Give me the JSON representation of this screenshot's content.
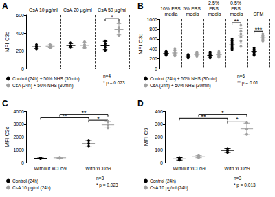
{
  "chart_data": [
    {
      "type": "scatter",
      "label": "A",
      "y_label": "MFI C3c",
      "categories": [
        "CsA 10 µg/ml",
        "CsA 20 µg/ml",
        "CsA 50 µg/ml"
      ],
      "ylim": [
        0,
        600
      ],
      "yticks": [
        0,
        200,
        400,
        600
      ],
      "grid": false,
      "line_style": "dashed",
      "series": [
        {
          "name": "Control (24h) + 50% NHS (30min)",
          "color": "#000000",
          "marker": "circle",
          "values": [
            [
              220,
              240,
              250,
              270
            ],
            [
              240,
              250,
              260,
              290
            ],
            [
              200,
              240,
              280,
              310
            ]
          ],
          "mean": [
            245,
            260,
            258
          ],
          "error": [
            20,
            22,
            48
          ]
        },
        {
          "name": "CsA (24h) + 50% NHS (30min)",
          "color": "#a0a0a0",
          "marker": "circle",
          "values": [
            [
              230,
              250,
              260,
              270
            ],
            [
              230,
              250,
              270,
              300
            ],
            [
              370,
              420,
              460,
              520
            ]
          ],
          "mean": [
            252,
            262,
            442
          ],
          "error": [
            17,
            30,
            63
          ]
        }
      ],
      "notes": [
        "n=4",
        "* p = 0.023"
      ],
      "annotations": [
        {
          "text": "*",
          "from": [
            "CsA 50 µg/ml",
            "Control (24h) + 50% NHS (30min)"
          ],
          "to": [
            "CsA 50 µg/ml",
            "CsA (24h) + 50% NHS (30min)"
          ],
          "y": 560
        }
      ]
    },
    {
      "type": "scatter",
      "label": "B",
      "y_label": "MFI C3c",
      "categories": [
        "10% FBS media",
        "5% FBS media",
        "2.5% FBS media",
        "0.5% FBS media",
        "SFM"
      ],
      "ylim": [
        0,
        1000
      ],
      "yticks": [
        0,
        200,
        400,
        600,
        800,
        1000
      ],
      "grid": false,
      "line_style": "dashed",
      "series": [
        {
          "name": "Control (24h) + 50% NHS (30min)",
          "color": "#000000",
          "marker": "circle",
          "values": [
            [
              270,
              290,
              300,
              320,
              330,
              350
            ],
            [
              220,
              240,
              250,
              260,
              270,
              290
            ],
            [
              220,
              240,
              260,
              280,
              290,
              330
            ],
            [
              380,
              420,
              460,
              500,
              540,
              600
            ],
            [
              270,
              300,
              330,
              350,
              380,
              420
            ]
          ],
          "mean": [
            310,
            255,
            270,
            483,
            342
          ],
          "error": [
            28,
            24,
            39,
            79,
            53
          ]
        },
        {
          "name": "CsA (24h) + 50% NHS (30min)",
          "color": "#a0a0a0",
          "marker": "circle",
          "values": [
            [
              260,
              280,
              300,
              320,
              360,
              400
            ],
            [
              250,
              270,
              280,
              300,
              310,
              330
            ],
            [
              230,
              250,
              270,
              290,
              310,
              350
            ],
            [
              450,
              560,
              640,
              700,
              760,
              880
            ],
            [
              560,
              580,
              600,
              640,
              660,
              700
            ]
          ],
          "mean": [
            320,
            290,
            283,
            665,
            623
          ],
          "error": [
            51,
            28,
            42,
            148,
            52
          ]
        }
      ],
      "notes": [
        "n=6",
        "** p = 0.01"
      ],
      "annotations": [
        {
          "text": "**",
          "from": [
            "0.5% FBS media",
            "Control (24h) + 50% NHS (30min)"
          ],
          "to": [
            "0.5% FBS media",
            "CsA (24h) + 50% NHS (30min)"
          ],
          "y": 930
        },
        {
          "text": "***",
          "from": [
            "SFM",
            "Control (24h) + 50% NHS (30min)"
          ],
          "to": [
            "SFM",
            "CsA (24h) + 50% NHS (30min)"
          ],
          "y": 760
        }
      ]
    },
    {
      "type": "scatter",
      "label": "C",
      "y_label": "MFI C3c",
      "categories": [
        "Without xCD59",
        "With xCD59"
      ],
      "ylim": [
        0,
        4000
      ],
      "yticks": [
        0,
        1000,
        2000,
        3000,
        4000
      ],
      "grid": false,
      "series": [
        {
          "name": "Control (24h)",
          "color": "#000000",
          "marker": "circle",
          "values": [
            [
              320,
              350,
              370
            ],
            [
              1300,
              1500,
              1700
            ]
          ],
          "mean": [
            347,
            1500
          ],
          "error": [
            25,
            200
          ]
        },
        {
          "name": "CsA 10 µg/ml (24h)",
          "color": "#a0a0a0",
          "marker": "circle",
          "values": [
            [
              350,
              380,
              420
            ],
            [
              2700,
              2950,
              3200
            ]
          ],
          "mean": [
            383,
            2950
          ],
          "error": [
            35,
            250
          ]
        }
      ],
      "notes": [
        "n=3",
        "* p = 0.023"
      ],
      "annotations": [
        {
          "text": "**",
          "from": [
            "Without xCD59",
            "CsA 10 µg/ml (24h)"
          ],
          "to": [
            "With xCD59",
            "CsA 10 µg/ml (24h)"
          ],
          "y": 3750
        },
        {
          "text": "**",
          "from": [
            "Without xCD59",
            "Control (24h)"
          ],
          "to": [
            "With xCD59",
            "Control (24h)"
          ],
          "y": 3500
        },
        {
          "text": "*",
          "from": [
            "With xCD59",
            "Control (24h)"
          ],
          "to": [
            "With xCD59",
            "CsA 10 µg/ml (24h)"
          ],
          "y": 3300
        }
      ]
    },
    {
      "type": "scatter",
      "label": "D",
      "y_label": "MFI C9",
      "categories": [
        "Without xCD59",
        "With xCD59"
      ],
      "ylim": [
        0,
        400
      ],
      "yticks": [
        0,
        100,
        200,
        300,
        400
      ],
      "grid": false,
      "series": [
        {
          "name": "Control (24h)",
          "color": "#000000",
          "marker": "circle",
          "values": [
            [
              20,
              30,
              40
            ],
            [
              80,
              95,
              110
            ]
          ],
          "mean": [
            30,
            95
          ],
          "error": [
            10,
            15
          ]
        },
        {
          "name": "CsA 10 µg/ml (24h)",
          "color": "#a0a0a0",
          "marker": "circle",
          "values": [
            [
              40,
              45,
              55
            ],
            [
              220,
              260,
              310
            ]
          ],
          "mean": [
            47,
            263
          ],
          "error": [
            8,
            45
          ]
        }
      ],
      "notes": [
        "n=3",
        "* p = 0.013"
      ],
      "annotations": [
        {
          "text": "*",
          "from": [
            "Without xCD59",
            "CsA 10 µg/ml (24h)"
          ],
          "to": [
            "With xCD59",
            "CsA 10 µg/ml (24h)"
          ],
          "y": 375
        },
        {
          "text": "**",
          "from": [
            "Without xCD59",
            "Control (24h)"
          ],
          "to": [
            "With xCD59",
            "Control (24h)"
          ],
          "y": 345
        },
        {
          "text": "*",
          "from": [
            "With xCD59",
            "Control (24h)"
          ],
          "to": [
            "With xCD59",
            "CsA 10 µg/ml (24h)"
          ],
          "y": 322
        }
      ]
    }
  ]
}
